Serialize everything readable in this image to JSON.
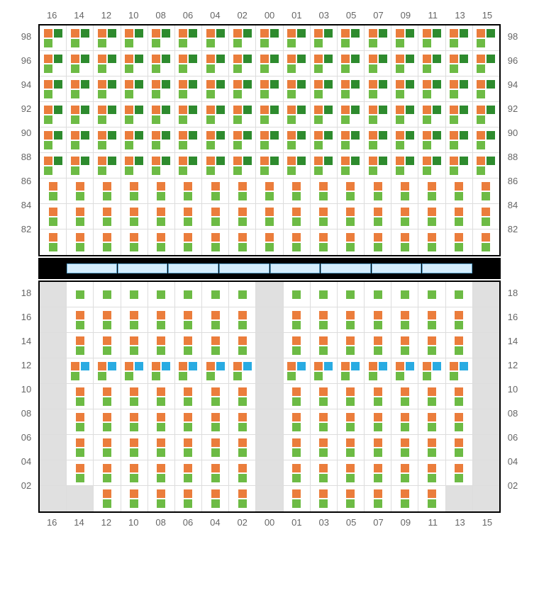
{
  "colors": {
    "orange": "#eb7d3c",
    "green": "#6dbb45",
    "darkgreen": "#2e8b2e",
    "blue": "#29abe2",
    "gray_cell": "#e0e0e0",
    "border": "#dddddd",
    "label": "#666666",
    "mid_fill": "#d4ecfb",
    "mid_border": "#5fa8d3"
  },
  "columns": [
    "16",
    "14",
    "12",
    "10",
    "08",
    "06",
    "04",
    "02",
    "00",
    "01",
    "03",
    "05",
    "07",
    "09",
    "11",
    "13",
    "15"
  ],
  "top": {
    "rows": [
      "98",
      "96",
      "94",
      "92",
      "90",
      "88",
      "86",
      "84",
      "82"
    ],
    "patternA_rows": [
      "98",
      "96",
      "94",
      "92",
      "90",
      "88"
    ],
    "patternB_rows": [
      "86",
      "84",
      "82"
    ]
  },
  "bottom": {
    "rows": [
      "18",
      "16",
      "14",
      "12",
      "10",
      "08",
      "06",
      "04",
      "02"
    ],
    "gray_cols_always": [
      "16",
      "15"
    ],
    "aisle_col": "00",
    "row18_green_only": true,
    "row12_blue": true,
    "row02_extra_gray_cols": [
      "14",
      "13"
    ],
    "row02_nonempty_cols": [
      "12",
      "10",
      "08",
      "06",
      "04",
      "02",
      "01",
      "03",
      "05",
      "07",
      "09",
      "11"
    ]
  },
  "mid_segments": 8
}
